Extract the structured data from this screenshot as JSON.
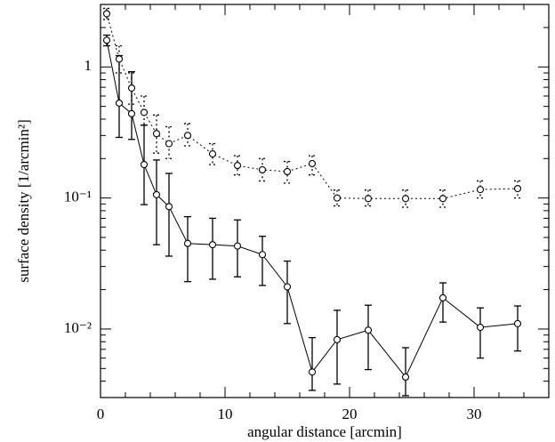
{
  "chart_data": {
    "type": "errorbar-line",
    "x_label": "angular distance [arcmin]",
    "y_label": "surface density [1/arcmin²]",
    "xlim": [
      0,
      36
    ],
    "xticks": [
      0,
      10,
      20,
      30
    ],
    "ylim": [
      0.003,
      3
    ],
    "y_scale": "log",
    "yticks": [
      1,
      {
        "value": 0.1,
        "label": "10⁻¹"
      },
      {
        "value": 0.01,
        "label": "10⁻²"
      }
    ],
    "x": [
      0.5,
      1.5,
      2.5,
      3.5,
      4.5,
      5.5,
      7,
      9,
      11,
      13,
      15,
      17,
      19,
      21.5,
      24.5,
      27.5,
      30.5,
      33.5
    ],
    "series": [
      {
        "color": "#000000",
        "linestyle": "solid",
        "values": [
          1.6,
          0.53,
          0.44,
          0.18,
          0.106,
          0.086,
          0.045,
          0.044,
          0.043,
          0.037,
          0.021,
          0.0047,
          0.0083,
          0.0098,
          0.0043,
          0.0173,
          0.0103,
          0.011
        ],
        "error_upper": [
          1.75,
          1.22,
          0.92,
          0.36,
          0.195,
          0.154,
          0.072,
          0.07,
          0.068,
          0.051,
          0.033,
          0.0086,
          0.0139,
          0.0152,
          0.0072,
          0.0225,
          0.0145,
          0.015
        ],
        "error_lower": [
          1.45,
          0.29,
          0.28,
          0.089,
          0.044,
          0.036,
          0.023,
          0.024,
          0.025,
          0.0215,
          0.011,
          0.0034,
          0.0038,
          0.0049,
          0.0031,
          0.0113,
          0.006,
          0.0068
        ]
      },
      {
        "color": "#000000",
        "linestyle": "dotted",
        "values": [
          2.55,
          1.15,
          0.69,
          0.45,
          0.31,
          0.26,
          0.3,
          0.217,
          0.177,
          0.164,
          0.159,
          0.183,
          0.1,
          0.099,
          0.099,
          0.099,
          0.116,
          0.118
        ],
        "error_upper": [
          2.8,
          1.45,
          0.9,
          0.6,
          0.43,
          0.35,
          0.37,
          0.26,
          0.21,
          0.2,
          0.19,
          0.21,
          0.115,
          0.115,
          0.115,
          0.115,
          0.135,
          0.135
        ],
        "error_lower": [
          2.3,
          0.9,
          0.52,
          0.36,
          0.22,
          0.2,
          0.25,
          0.18,
          0.15,
          0.135,
          0.13,
          0.15,
          0.087,
          0.087,
          0.085,
          0.085,
          0.1,
          0.1
        ]
      }
    ]
  }
}
